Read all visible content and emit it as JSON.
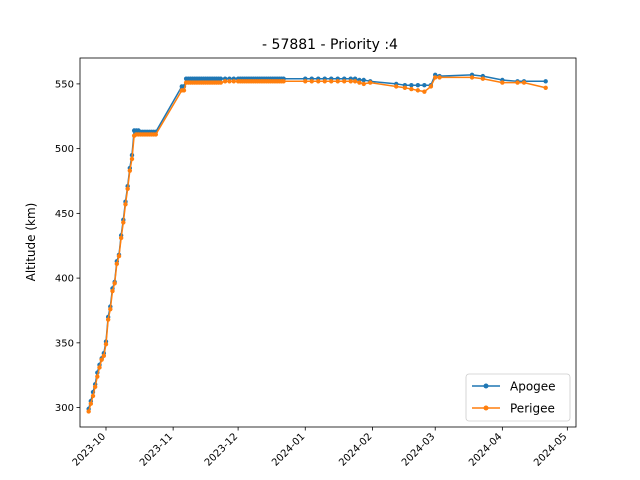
{
  "chart_data": {
    "type": "line",
    "title": "- 57881 - Priority :4",
    "xlabel": "",
    "ylabel": "Altitude (km)",
    "x_ticks": [
      "2023-10",
      "2023-11",
      "2023-12",
      "2024-01",
      "2024-02",
      "2024-03",
      "2024-04",
      "2024-05"
    ],
    "y_ticks": [
      300,
      350,
      400,
      450,
      500,
      550
    ],
    "xlim": [
      "2023-09-19",
      "2024-05-05"
    ],
    "ylim": [
      285,
      570
    ],
    "grid": false,
    "legend_position": "lower-right",
    "series": [
      {
        "name": "Apogee",
        "color": "#1f77b4",
        "marker": "circle",
        "points": [
          [
            "2023-09-23",
            299
          ],
          [
            "2023-09-24",
            305
          ],
          [
            "2023-09-25",
            312
          ],
          [
            "2023-09-26",
            318
          ],
          [
            "2023-09-27",
            327
          ],
          [
            "2023-09-28",
            333
          ],
          [
            "2023-09-29",
            338
          ],
          [
            "2023-09-30",
            342
          ],
          [
            "2023-10-01",
            351
          ],
          [
            "2023-10-02",
            370
          ],
          [
            "2023-10-03",
            378
          ],
          [
            "2023-10-04",
            392
          ],
          [
            "2023-10-05",
            397
          ],
          [
            "2023-10-06",
            413
          ],
          [
            "2023-10-07",
            418
          ],
          [
            "2023-10-08",
            433
          ],
          [
            "2023-10-09",
            445
          ],
          [
            "2023-10-10",
            459
          ],
          [
            "2023-10-11",
            471
          ],
          [
            "2023-10-12",
            485
          ],
          [
            "2023-10-13",
            495
          ],
          [
            "2023-10-14",
            514
          ],
          [
            "2023-10-15",
            514
          ],
          [
            "2023-10-16",
            514
          ],
          [
            "2023-10-17",
            513
          ],
          [
            "2023-10-18",
            513
          ],
          [
            "2023-10-19",
            513
          ],
          [
            "2023-10-20",
            513
          ],
          [
            "2023-10-21",
            513
          ],
          [
            "2023-10-22",
            513
          ],
          [
            "2023-10-23",
            513
          ],
          [
            "2023-10-24",
            513
          ],
          [
            "2023-11-05",
            548
          ],
          [
            "2023-11-06",
            548
          ],
          [
            "2023-11-07",
            554
          ],
          [
            "2023-11-08",
            554
          ],
          [
            "2023-11-09",
            554
          ],
          [
            "2023-11-10",
            554
          ],
          [
            "2023-11-11",
            554
          ],
          [
            "2023-11-12",
            554
          ],
          [
            "2023-11-13",
            554
          ],
          [
            "2023-11-14",
            554
          ],
          [
            "2023-11-15",
            554
          ],
          [
            "2023-11-16",
            554
          ],
          [
            "2023-11-17",
            554
          ],
          [
            "2023-11-18",
            554
          ],
          [
            "2023-11-19",
            554
          ],
          [
            "2023-11-20",
            554
          ],
          [
            "2023-11-21",
            554
          ],
          [
            "2023-11-22",
            554
          ],
          [
            "2023-11-23",
            554
          ],
          [
            "2023-11-25",
            554
          ],
          [
            "2023-11-27",
            554
          ],
          [
            "2023-11-29",
            554
          ],
          [
            "2023-12-01",
            554
          ],
          [
            "2023-12-02",
            554
          ],
          [
            "2023-12-03",
            554
          ],
          [
            "2023-12-04",
            554
          ],
          [
            "2023-12-05",
            554
          ],
          [
            "2023-12-06",
            554
          ],
          [
            "2023-12-07",
            554
          ],
          [
            "2023-12-08",
            554
          ],
          [
            "2023-12-09",
            554
          ],
          [
            "2023-12-10",
            554
          ],
          [
            "2023-12-11",
            554
          ],
          [
            "2023-12-12",
            554
          ],
          [
            "2023-12-13",
            554
          ],
          [
            "2023-12-14",
            554
          ],
          [
            "2023-12-15",
            554
          ],
          [
            "2023-12-16",
            554
          ],
          [
            "2023-12-17",
            554
          ],
          [
            "2023-12-18",
            554
          ],
          [
            "2023-12-19",
            554
          ],
          [
            "2023-12-20",
            554
          ],
          [
            "2023-12-21",
            554
          ],
          [
            "2023-12-22",
            554
          ],
          [
            "2024-01-01",
            554
          ],
          [
            "2024-01-04",
            554
          ],
          [
            "2024-01-07",
            554
          ],
          [
            "2024-01-10",
            554
          ],
          [
            "2024-01-13",
            554
          ],
          [
            "2024-01-16",
            554
          ],
          [
            "2024-01-19",
            554
          ],
          [
            "2024-01-22",
            554
          ],
          [
            "2024-01-24",
            554
          ],
          [
            "2024-01-26",
            553
          ],
          [
            "2024-01-28",
            553
          ],
          [
            "2024-01-31",
            552
          ],
          [
            "2024-02-12",
            550
          ],
          [
            "2024-02-16",
            549
          ],
          [
            "2024-02-19",
            549
          ],
          [
            "2024-02-22",
            549
          ],
          [
            "2024-02-25",
            549
          ],
          [
            "2024-02-28",
            549
          ],
          [
            "2024-03-01",
            557
          ],
          [
            "2024-03-03",
            556
          ],
          [
            "2024-03-18",
            557
          ],
          [
            "2024-03-23",
            556
          ],
          [
            "2024-04-01",
            553
          ],
          [
            "2024-04-08",
            552
          ],
          [
            "2024-04-11",
            552
          ],
          [
            "2024-04-21",
            552
          ]
        ]
      },
      {
        "name": "Perigee",
        "color": "#ff7f0e",
        "marker": "circle",
        "points": [
          [
            "2023-09-23",
            297
          ],
          [
            "2023-09-24",
            303
          ],
          [
            "2023-09-25",
            309
          ],
          [
            "2023-09-26",
            316
          ],
          [
            "2023-09-27",
            324
          ],
          [
            "2023-09-28",
            331
          ],
          [
            "2023-09-29",
            337
          ],
          [
            "2023-09-30",
            340
          ],
          [
            "2023-10-01",
            349
          ],
          [
            "2023-10-02",
            368
          ],
          [
            "2023-10-03",
            376
          ],
          [
            "2023-10-04",
            390
          ],
          [
            "2023-10-05",
            396
          ],
          [
            "2023-10-06",
            411
          ],
          [
            "2023-10-07",
            417
          ],
          [
            "2023-10-08",
            431
          ],
          [
            "2023-10-09",
            443
          ],
          [
            "2023-10-10",
            457
          ],
          [
            "2023-10-11",
            469
          ],
          [
            "2023-10-12",
            483
          ],
          [
            "2023-10-13",
            492
          ],
          [
            "2023-10-14",
            510
          ],
          [
            "2023-10-15",
            511
          ],
          [
            "2023-10-16",
            511
          ],
          [
            "2023-10-17",
            511
          ],
          [
            "2023-10-18",
            511
          ],
          [
            "2023-10-19",
            511
          ],
          [
            "2023-10-20",
            511
          ],
          [
            "2023-10-21",
            511
          ],
          [
            "2023-10-22",
            511
          ],
          [
            "2023-10-23",
            511
          ],
          [
            "2023-10-24",
            511
          ],
          [
            "2023-11-05",
            545
          ],
          [
            "2023-11-06",
            545
          ],
          [
            "2023-11-07",
            551
          ],
          [
            "2023-11-08",
            551
          ],
          [
            "2023-11-09",
            551
          ],
          [
            "2023-11-10",
            551
          ],
          [
            "2023-11-11",
            551
          ],
          [
            "2023-11-12",
            551
          ],
          [
            "2023-11-13",
            551
          ],
          [
            "2023-11-14",
            551
          ],
          [
            "2023-11-15",
            551
          ],
          [
            "2023-11-16",
            551
          ],
          [
            "2023-11-17",
            551
          ],
          [
            "2023-11-18",
            551
          ],
          [
            "2023-11-19",
            551
          ],
          [
            "2023-11-20",
            551
          ],
          [
            "2023-11-21",
            551
          ],
          [
            "2023-11-22",
            551
          ],
          [
            "2023-11-23",
            551
          ],
          [
            "2023-11-25",
            552
          ],
          [
            "2023-11-27",
            552
          ],
          [
            "2023-11-29",
            552
          ],
          [
            "2023-12-01",
            552
          ],
          [
            "2023-12-02",
            552
          ],
          [
            "2023-12-03",
            552
          ],
          [
            "2023-12-04",
            552
          ],
          [
            "2023-12-05",
            552
          ],
          [
            "2023-12-06",
            552
          ],
          [
            "2023-12-07",
            552
          ],
          [
            "2023-12-08",
            552
          ],
          [
            "2023-12-09",
            552
          ],
          [
            "2023-12-10",
            552
          ],
          [
            "2023-12-11",
            552
          ],
          [
            "2023-12-12",
            552
          ],
          [
            "2023-12-13",
            552
          ],
          [
            "2023-12-14",
            552
          ],
          [
            "2023-12-15",
            552
          ],
          [
            "2023-12-16",
            552
          ],
          [
            "2023-12-17",
            552
          ],
          [
            "2023-12-18",
            552
          ],
          [
            "2023-12-19",
            552
          ],
          [
            "2023-12-20",
            552
          ],
          [
            "2023-12-21",
            552
          ],
          [
            "2023-12-22",
            552
          ],
          [
            "2024-01-01",
            552
          ],
          [
            "2024-01-04",
            552
          ],
          [
            "2024-01-07",
            552
          ],
          [
            "2024-01-10",
            552
          ],
          [
            "2024-01-13",
            552
          ],
          [
            "2024-01-16",
            552
          ],
          [
            "2024-01-19",
            552
          ],
          [
            "2024-01-22",
            552
          ],
          [
            "2024-01-24",
            552
          ],
          [
            "2024-01-26",
            551
          ],
          [
            "2024-01-28",
            550
          ],
          [
            "2024-01-31",
            551
          ],
          [
            "2024-02-12",
            548
          ],
          [
            "2024-02-16",
            547
          ],
          [
            "2024-02-19",
            546
          ],
          [
            "2024-02-22",
            545
          ],
          [
            "2024-02-25",
            544
          ],
          [
            "2024-02-28",
            548
          ],
          [
            "2024-03-01",
            555
          ],
          [
            "2024-03-03",
            555
          ],
          [
            "2024-03-18",
            555
          ],
          [
            "2024-03-23",
            554
          ],
          [
            "2024-04-01",
            551
          ],
          [
            "2024-04-08",
            551
          ],
          [
            "2024-04-11",
            551
          ],
          [
            "2024-04-21",
            547
          ]
        ]
      }
    ]
  }
}
